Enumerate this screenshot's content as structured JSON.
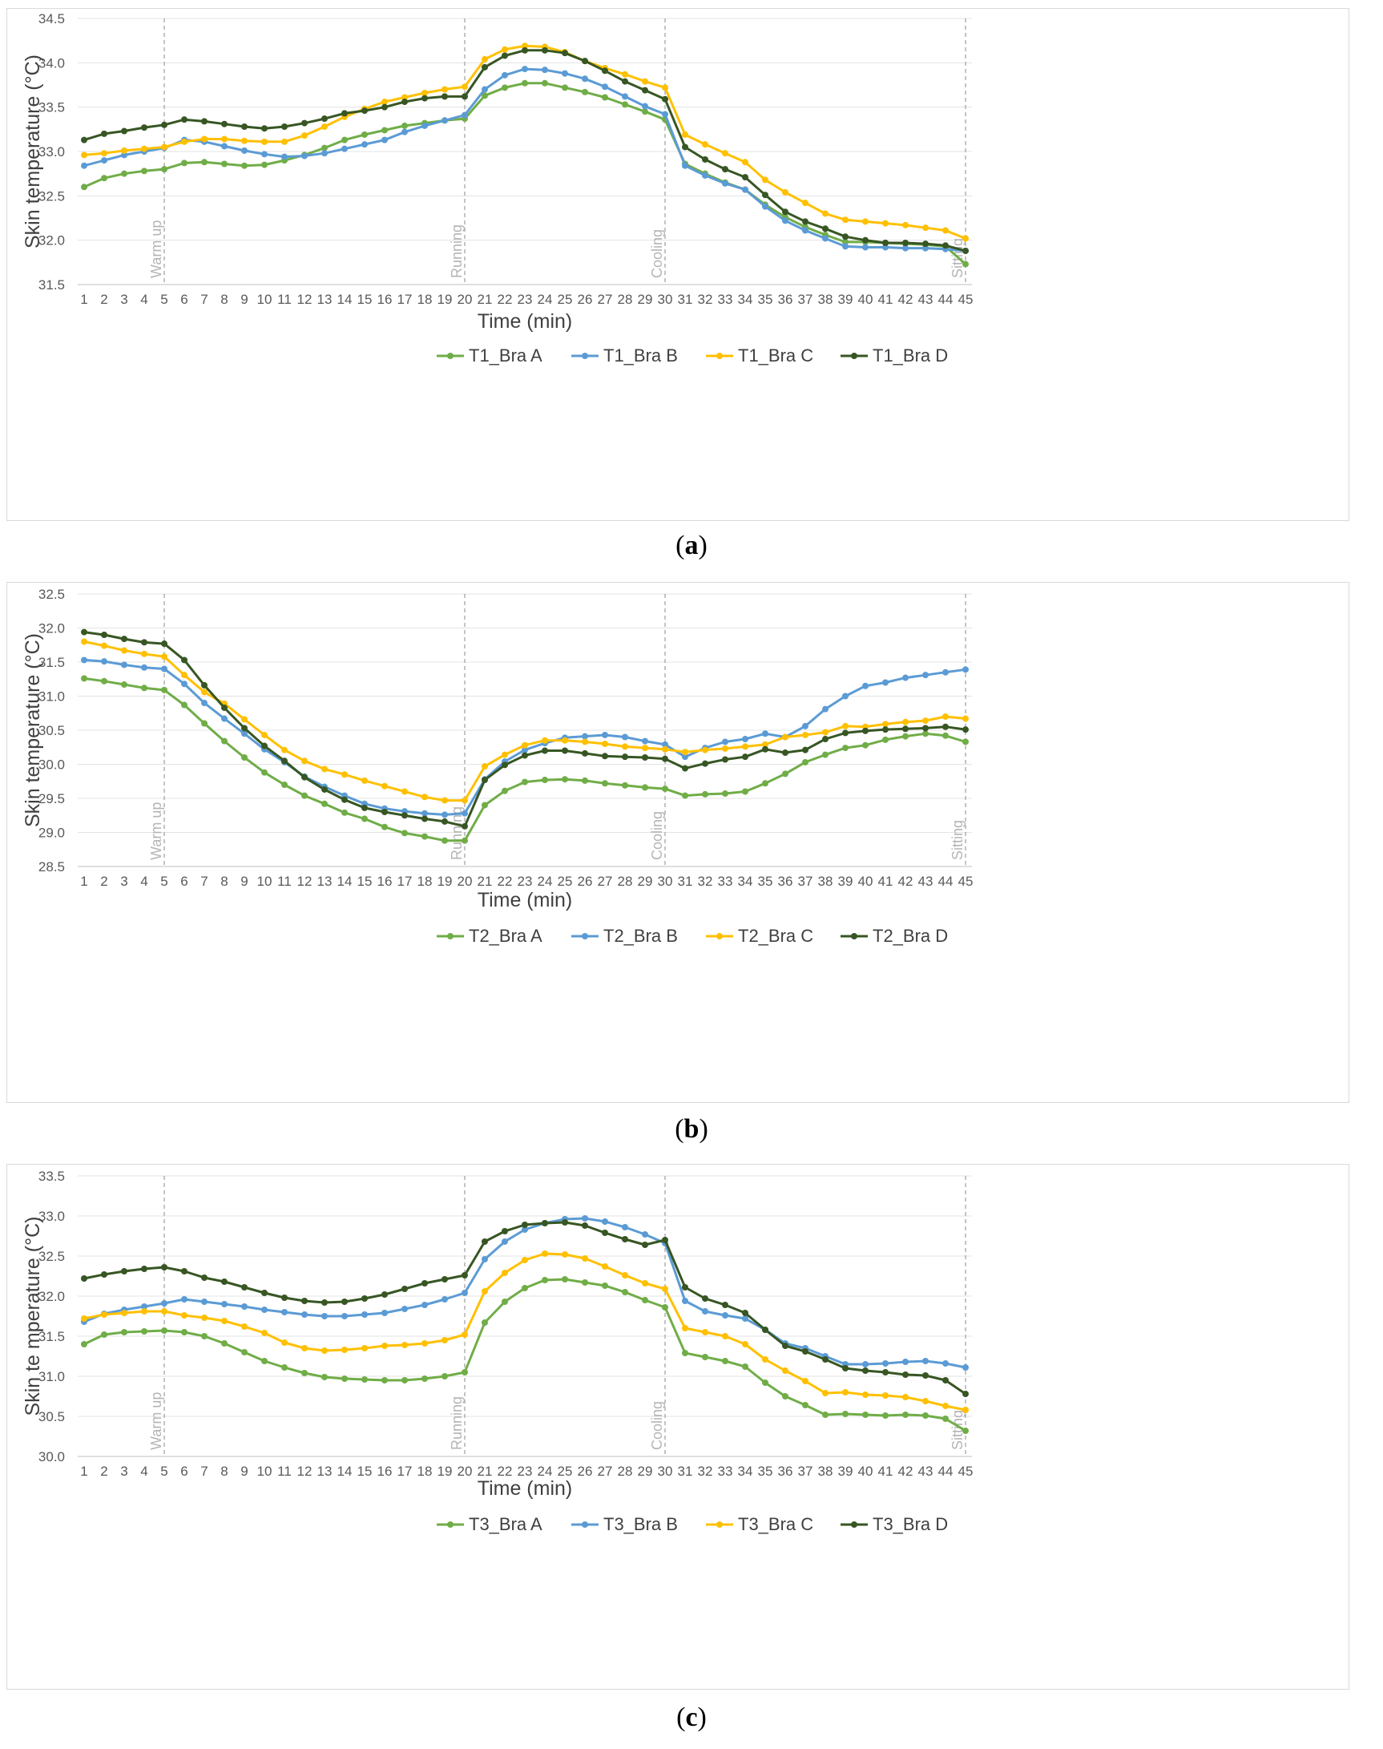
{
  "colors": {
    "bra_a": "#70ad47",
    "bra_b": "#5b9bd5",
    "bra_c": "#ffc000",
    "bra_d": "#375623"
  },
  "chart_data": [
    {
      "type": "line",
      "panel_label": "a",
      "xlabel": "Time (min)",
      "ylabel": "Skin temperature (°C)",
      "ylim": [
        31.5,
        34.5
      ],
      "ytick_step": 0.5,
      "yticks": [
        "31.5",
        "32.0",
        "32.5",
        "33.0",
        "33.5",
        "34.0",
        "34.5"
      ],
      "x": [
        1,
        2,
        3,
        4,
        5,
        6,
        7,
        8,
        9,
        10,
        11,
        12,
        13,
        14,
        15,
        16,
        17,
        18,
        19,
        20,
        21,
        22,
        23,
        24,
        25,
        26,
        27,
        28,
        29,
        30,
        31,
        32,
        33,
        34,
        35,
        36,
        37,
        38,
        39,
        40,
        41,
        42,
        43,
        44,
        45
      ],
      "grid": "horizontal",
      "legend": "bottom",
      "phases": [
        {
          "x": 5,
          "label": "Warm up"
        },
        {
          "x": 20,
          "label": "Running"
        },
        {
          "x": 30,
          "label": "Cooling"
        },
        {
          "x": 45,
          "label": "Sitting"
        }
      ],
      "series": [
        {
          "name": "T1_Bra A",
          "color_key": "bra_a",
          "values": [
            32.6,
            32.7,
            32.75,
            32.78,
            32.8,
            32.87,
            32.88,
            32.86,
            32.84,
            32.85,
            32.9,
            32.96,
            33.04,
            33.13,
            33.19,
            33.24,
            33.29,
            33.32,
            33.35,
            33.37,
            33.63,
            33.72,
            33.77,
            33.77,
            33.72,
            33.67,
            33.61,
            33.53,
            33.45,
            33.36,
            32.86,
            32.75,
            32.65,
            32.57,
            32.4,
            32.26,
            32.15,
            32.06,
            31.98,
            31.98,
            31.97,
            31.96,
            31.95,
            31.93,
            31.73
          ]
        },
        {
          "name": "T1_Bra B",
          "color_key": "bra_b",
          "values": [
            32.84,
            32.9,
            32.96,
            33.0,
            33.04,
            33.13,
            33.11,
            33.06,
            33.01,
            32.97,
            32.94,
            32.95,
            32.98,
            33.03,
            33.08,
            33.13,
            33.22,
            33.29,
            33.35,
            33.41,
            33.7,
            33.86,
            33.93,
            33.92,
            33.88,
            33.82,
            33.73,
            33.62,
            33.51,
            33.42,
            32.84,
            32.73,
            32.64,
            32.57,
            32.38,
            32.22,
            32.11,
            32.02,
            31.93,
            31.92,
            31.92,
            31.91,
            31.91,
            31.9,
            31.88
          ]
        },
        {
          "name": "T1_Bra C",
          "color_key": "bra_c",
          "values": [
            32.96,
            32.98,
            33.01,
            33.03,
            33.05,
            33.11,
            33.14,
            33.14,
            33.12,
            33.11,
            33.11,
            33.18,
            33.28,
            33.39,
            33.48,
            33.56,
            33.61,
            33.66,
            33.7,
            33.73,
            34.04,
            34.15,
            34.19,
            34.18,
            34.12,
            34.02,
            33.94,
            33.87,
            33.79,
            33.72,
            33.19,
            33.08,
            32.98,
            32.88,
            32.68,
            32.54,
            32.42,
            32.3,
            32.23,
            32.21,
            32.19,
            32.17,
            32.14,
            32.11,
            32.02
          ]
        },
        {
          "name": "T1_Bra D",
          "color_key": "bra_d",
          "values": [
            33.13,
            33.2,
            33.23,
            33.27,
            33.3,
            33.36,
            33.34,
            33.31,
            33.28,
            33.26,
            33.28,
            33.32,
            33.37,
            33.43,
            33.46,
            33.5,
            33.56,
            33.6,
            33.62,
            33.62,
            33.95,
            34.08,
            34.14,
            34.14,
            34.11,
            34.02,
            33.91,
            33.79,
            33.69,
            33.59,
            33.05,
            32.91,
            32.8,
            32.71,
            32.51,
            32.32,
            32.21,
            32.13,
            32.04,
            32.0,
            31.97,
            31.97,
            31.96,
            31.94,
            31.88
          ]
        }
      ]
    },
    {
      "type": "line",
      "panel_label": "b",
      "xlabel": "Time (min)",
      "ylabel": "Skin temperature (°C)",
      "ylim": [
        28.5,
        32.5
      ],
      "ytick_step": 0.5,
      "yticks": [
        "28.5",
        "29.0",
        "29.5",
        "30.0",
        "30.5",
        "31.0",
        "31.5",
        "32.0",
        "32.5"
      ],
      "x": [
        1,
        2,
        3,
        4,
        5,
        6,
        7,
        8,
        9,
        10,
        11,
        12,
        13,
        14,
        15,
        16,
        17,
        18,
        19,
        20,
        21,
        22,
        23,
        24,
        25,
        26,
        27,
        28,
        29,
        30,
        31,
        32,
        33,
        34,
        35,
        36,
        37,
        38,
        39,
        40,
        41,
        42,
        43,
        44,
        45
      ],
      "grid": "horizontal",
      "legend": "bottom",
      "phases": [
        {
          "x": 5,
          "label": "Warm up"
        },
        {
          "x": 20,
          "label": "Running"
        },
        {
          "x": 30,
          "label": "Cooling"
        },
        {
          "x": 45,
          "label": "Sitting"
        }
      ],
      "series": [
        {
          "name": "T2_Bra A",
          "color_key": "bra_a",
          "values": [
            31.26,
            31.22,
            31.17,
            31.12,
            31.09,
            30.87,
            30.6,
            30.34,
            30.1,
            29.88,
            29.7,
            29.54,
            29.42,
            29.29,
            29.2,
            29.08,
            28.99,
            28.94,
            28.88,
            28.88,
            29.4,
            29.61,
            29.74,
            29.77,
            29.78,
            29.76,
            29.72,
            29.69,
            29.66,
            29.64,
            29.54,
            29.56,
            29.57,
            29.6,
            29.72,
            29.86,
            30.03,
            30.14,
            30.24,
            30.28,
            30.36,
            30.41,
            30.45,
            30.42,
            30.33
          ]
        },
        {
          "name": "T2_Bra B",
          "color_key": "bra_b",
          "values": [
            31.53,
            31.51,
            31.46,
            31.42,
            31.4,
            31.18,
            30.9,
            30.67,
            30.45,
            30.22,
            30.03,
            29.82,
            29.67,
            29.54,
            29.42,
            29.35,
            29.31,
            29.28,
            29.26,
            29.28,
            29.78,
            30.04,
            30.21,
            30.31,
            30.39,
            30.41,
            30.43,
            30.4,
            30.34,
            30.29,
            30.11,
            30.24,
            30.33,
            30.37,
            30.45,
            30.4,
            30.56,
            30.81,
            31.0,
            31.15,
            31.2,
            31.27,
            31.31,
            31.35,
            31.39
          ]
        },
        {
          "name": "T2_Bra C",
          "color_key": "bra_c",
          "values": [
            31.8,
            31.74,
            31.67,
            31.62,
            31.58,
            31.31,
            31.06,
            30.89,
            30.66,
            30.43,
            30.21,
            30.05,
            29.93,
            29.85,
            29.76,
            29.68,
            29.6,
            29.52,
            29.47,
            29.47,
            29.97,
            30.14,
            30.28,
            30.35,
            30.35,
            30.33,
            30.3,
            30.26,
            30.24,
            30.22,
            30.18,
            30.21,
            30.23,
            30.26,
            30.29,
            30.4,
            30.43,
            30.47,
            30.56,
            30.55,
            30.59,
            30.62,
            30.64,
            30.7,
            30.67
          ]
        },
        {
          "name": "T2_Bra D",
          "color_key": "bra_d",
          "values": [
            31.94,
            31.9,
            31.84,
            31.79,
            31.77,
            31.53,
            31.16,
            30.83,
            30.53,
            30.27,
            30.05,
            29.81,
            29.63,
            29.48,
            29.36,
            29.3,
            29.25,
            29.2,
            29.16,
            29.09,
            29.77,
            29.99,
            30.13,
            30.2,
            30.2,
            30.16,
            30.12,
            30.11,
            30.1,
            30.08,
            29.94,
            30.01,
            30.07,
            30.11,
            30.22,
            30.17,
            30.21,
            30.37,
            30.46,
            30.49,
            30.51,
            30.52,
            30.53,
            30.55,
            30.51
          ]
        }
      ]
    },
    {
      "type": "line",
      "panel_label": "c",
      "xlabel": "Time (min)",
      "ylabel": "Skin te mperature (°C)",
      "ylim": [
        30.0,
        33.5
      ],
      "ytick_step": 0.5,
      "yticks": [
        "30.0",
        "30.5",
        "31.0",
        "31.5",
        "32.0",
        "32.5",
        "33.0",
        "33.5"
      ],
      "x": [
        1,
        2,
        3,
        4,
        5,
        6,
        7,
        8,
        9,
        10,
        11,
        12,
        13,
        14,
        15,
        16,
        17,
        18,
        19,
        20,
        21,
        22,
        23,
        24,
        25,
        26,
        27,
        28,
        29,
        30,
        31,
        32,
        33,
        34,
        35,
        36,
        37,
        38,
        39,
        40,
        41,
        42,
        43,
        44,
        45
      ],
      "grid": "horizontal",
      "legend": "bottom",
      "phases": [
        {
          "x": 5,
          "label": "Warm up"
        },
        {
          "x": 20,
          "label": "Running"
        },
        {
          "x": 30,
          "label": "Cooling"
        },
        {
          "x": 45,
          "label": "Sitting"
        }
      ],
      "series": [
        {
          "name": "T3_Bra A",
          "color_key": "bra_a",
          "values": [
            31.4,
            31.52,
            31.55,
            31.56,
            31.57,
            31.55,
            31.5,
            31.41,
            31.3,
            31.19,
            31.11,
            31.04,
            30.99,
            30.97,
            30.96,
            30.95,
            30.95,
            30.97,
            31.0,
            31.05,
            31.67,
            31.93,
            32.1,
            32.2,
            32.21,
            32.17,
            32.13,
            32.05,
            31.95,
            31.86,
            31.29,
            31.24,
            31.19,
            31.12,
            30.92,
            30.75,
            30.64,
            30.52,
            30.53,
            30.52,
            30.51,
            30.52,
            30.51,
            30.47,
            30.32
          ]
        },
        {
          "name": "T3_Bra B",
          "color_key": "bra_b",
          "values": [
            31.68,
            31.78,
            31.83,
            31.87,
            31.91,
            31.96,
            31.93,
            31.9,
            31.87,
            31.83,
            31.8,
            31.77,
            31.75,
            31.75,
            31.77,
            31.79,
            31.84,
            31.89,
            31.96,
            32.04,
            32.46,
            32.68,
            32.83,
            32.91,
            32.96,
            32.97,
            32.93,
            32.86,
            32.77,
            32.66,
            31.94,
            31.81,
            31.76,
            31.72,
            31.58,
            31.41,
            31.35,
            31.25,
            31.15,
            31.15,
            31.16,
            31.18,
            31.19,
            31.16,
            31.11
          ]
        },
        {
          "name": "T3_Bra C",
          "color_key": "bra_c",
          "values": [
            31.72,
            31.77,
            31.79,
            31.81,
            31.81,
            31.76,
            31.73,
            31.69,
            31.62,
            31.54,
            31.42,
            31.35,
            31.32,
            31.33,
            31.35,
            31.38,
            31.39,
            31.41,
            31.45,
            31.52,
            32.06,
            32.29,
            32.45,
            32.53,
            32.52,
            32.47,
            32.37,
            32.26,
            32.16,
            32.09,
            31.6,
            31.55,
            31.5,
            31.4,
            31.21,
            31.07,
            30.94,
            30.79,
            30.8,
            30.77,
            30.76,
            30.74,
            30.69,
            30.63,
            30.58
          ]
        },
        {
          "name": "T3_Bra D",
          "color_key": "bra_d",
          "values": [
            32.22,
            32.27,
            32.31,
            32.34,
            32.36,
            32.31,
            32.23,
            32.18,
            32.11,
            32.04,
            31.98,
            31.94,
            31.92,
            31.93,
            31.97,
            32.02,
            32.09,
            32.16,
            32.21,
            32.26,
            32.68,
            32.81,
            32.89,
            32.91,
            32.92,
            32.88,
            32.79,
            32.71,
            32.64,
            32.7,
            32.11,
            31.97,
            31.89,
            31.79,
            31.58,
            31.38,
            31.31,
            31.21,
            31.1,
            31.07,
            31.05,
            31.02,
            31.01,
            30.95,
            30.78
          ]
        }
      ]
    }
  ]
}
